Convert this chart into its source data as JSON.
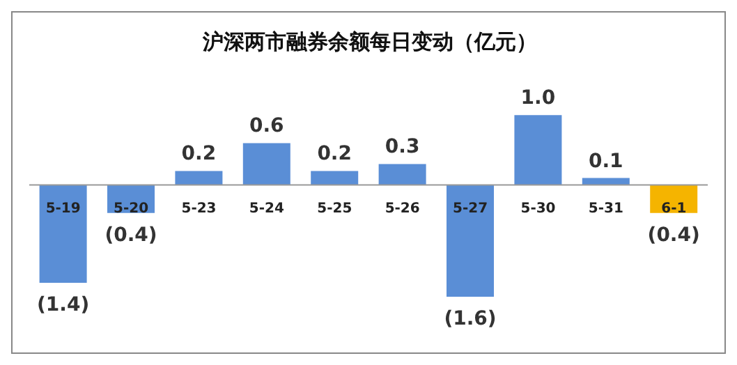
{
  "chart_data": {
    "type": "bar",
    "title": "沪深两市融券余额每日变动（亿元）",
    "categories": [
      "5-19",
      "5-20",
      "5-23",
      "5-24",
      "5-25",
      "5-26",
      "5-27",
      "5-30",
      "5-31",
      "6-1"
    ],
    "values": [
      -1.4,
      -0.4,
      0.2,
      0.6,
      0.2,
      0.3,
      -1.6,
      1.0,
      0.1,
      -0.4
    ],
    "colors": [
      "#5a8ed6",
      "#5a8ed6",
      "#5a8ed6",
      "#5a8ed6",
      "#5a8ed6",
      "#5a8ed6",
      "#5a8ed6",
      "#5a8ed6",
      "#5a8ed6",
      "#f5b400"
    ],
    "value_labels": [
      "(1.4)",
      "(0.4)",
      "0.2",
      "0.6",
      "0.2",
      "0.3",
      "(1.6)",
      "1.0",
      "0.1",
      "(0.4)"
    ],
    "grid": false,
    "legend": false
  }
}
